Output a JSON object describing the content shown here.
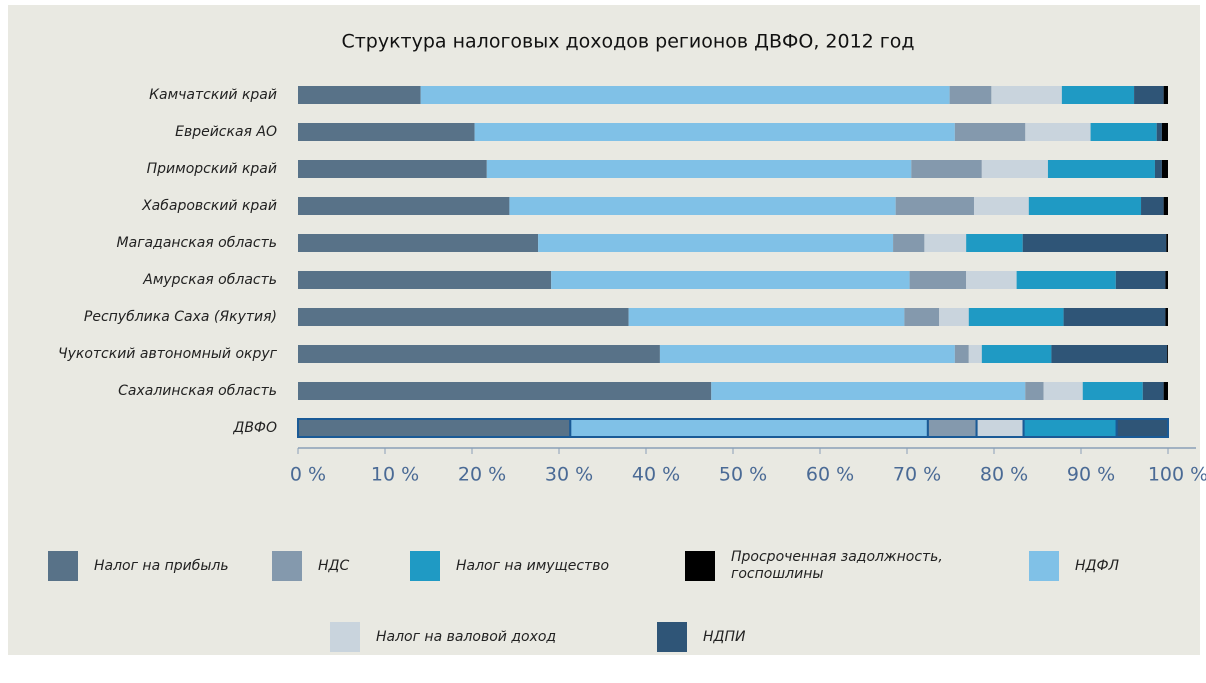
{
  "chart_data": {
    "type": "stacked_bar_horizontal",
    "title": "Структура налоговых доходов регионов ДВФО, 2012 год",
    "categories": [
      "Камчатский край",
      "Еврейская АО",
      "Приморский край",
      "Хабаровский край",
      "Магаданская область",
      "Амурская область",
      "Республика Саха (Якутия)",
      "Чукотский автономный округ",
      "Сахалинская область",
      "ДВФО"
    ],
    "series": [
      {
        "name": "Налог на прибыль",
        "color": "#587288",
        "values": [
          14.1,
          20.3,
          21.7,
          24.3,
          27.6,
          29.1,
          38.0,
          41.6,
          47.5,
          31.3
        ]
      },
      {
        "name": "НДФЛ",
        "color": "#80c1e7",
        "values": [
          60.8,
          55.2,
          48.8,
          44.4,
          40.8,
          41.2,
          31.7,
          33.9,
          36.1,
          41.1
        ]
      },
      {
        "name": "НДС",
        "color": "#8499ad",
        "values": [
          4.8,
          8.1,
          8.1,
          9.0,
          3.6,
          6.5,
          4.0,
          1.6,
          2.1,
          5.6
        ]
      },
      {
        "name": "Налог на валовой доход",
        "color": "#c9d4dd",
        "values": [
          8.1,
          7.5,
          7.6,
          6.3,
          4.8,
          5.8,
          3.4,
          1.5,
          4.5,
          5.4
        ]
      },
      {
        "name": "Налог на имущество",
        "color": "#1f9ac4",
        "values": [
          8.3,
          7.6,
          12.3,
          12.9,
          6.5,
          11.4,
          10.9,
          8.0,
          6.9,
          10.7
        ]
      },
      {
        "name": "НДПИ",
        "color": "#2f5577",
        "values": [
          3.4,
          0.6,
          0.8,
          2.6,
          16.5,
          5.7,
          11.7,
          13.3,
          2.4,
          5.9
        ]
      },
      {
        "name": "Просроченная задолжность, госпошлины",
        "color": "#000000",
        "values": [
          0.5,
          0.7,
          0.7,
          0.5,
          0.2,
          0.3,
          0.3,
          0.1,
          0.5,
          0
        ]
      }
    ],
    "xlim": [
      0,
      100
    ],
    "xticks": [
      {
        "value": 0,
        "label": "0 %"
      },
      {
        "value": 10,
        "label": "10 %"
      },
      {
        "value": 20,
        "label": "20 %"
      },
      {
        "value": 30,
        "label": "30 %"
      },
      {
        "value": 40,
        "label": "40 %"
      },
      {
        "value": 50,
        "label": "50 %"
      },
      {
        "value": 60,
        "label": "60 %"
      },
      {
        "value": 70,
        "label": "70 %"
      },
      {
        "value": 80,
        "label": "80 %"
      },
      {
        "value": 90,
        "label": "90 %"
      },
      {
        "value": 100,
        "label": "100 %"
      }
    ]
  }
}
